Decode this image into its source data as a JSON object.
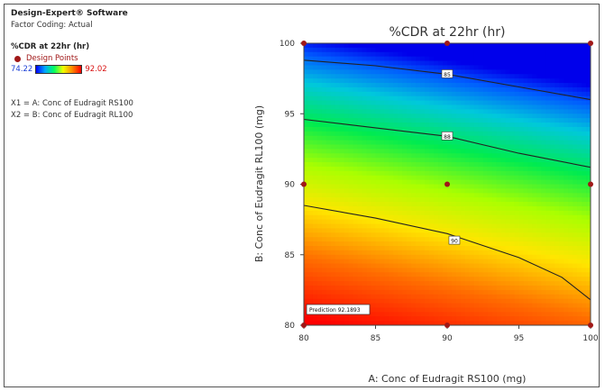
{
  "sidebar": {
    "title": "Design-Expert® Software",
    "coding": "Factor Coding: Actual",
    "response": "%CDR at 22hr (hr)",
    "design_points_label": "Design Points",
    "scale_min": "74.22",
    "scale_max": "92.02",
    "x1": "X1 = A: Conc of Eudragit RS100",
    "x2": "X2 = B: Conc of Eudragit RL100"
  },
  "colors": {
    "design_point": "#a01818",
    "contour_line": "#222222",
    "low": "#0000ff",
    "high": "#ff0000"
  },
  "chart_data": {
    "type": "contour",
    "title": "%CDR at 22hr (hr)",
    "xlabel": "A: Conc of Eudragit RS100 (mg)",
    "ylabel": "B: Conc of Eudragit RL100 (mg)",
    "xlim": [
      80,
      100
    ],
    "ylim": [
      80,
      100
    ],
    "xticks": [
      "80",
      "85",
      "90",
      "95",
      "100"
    ],
    "yticks": [
      "80",
      "85",
      "90",
      "95",
      "100"
    ],
    "response_range": [
      74.22,
      92.02
    ],
    "design_points": [
      {
        "x": 80,
        "y": 80
      },
      {
        "x": 90,
        "y": 80
      },
      {
        "x": 100,
        "y": 80
      },
      {
        "x": 80,
        "y": 90
      },
      {
        "x": 90,
        "y": 90
      },
      {
        "x": 100,
        "y": 90
      },
      {
        "x": 80,
        "y": 100
      },
      {
        "x": 90,
        "y": 100
      },
      {
        "x": 100,
        "y": 100
      }
    ],
    "contours": [
      {
        "label": "85",
        "points": [
          [
            80,
            98.8
          ],
          [
            85,
            98.4
          ],
          [
            90,
            97.8
          ],
          [
            95,
            96.9
          ],
          [
            100,
            96.0
          ]
        ]
      },
      {
        "label": "88",
        "points": [
          [
            80,
            94.6
          ],
          [
            85,
            94.0
          ],
          [
            90,
            93.4
          ],
          [
            95,
            92.2
          ],
          [
            100,
            91.2
          ]
        ]
      },
      {
        "label": "90",
        "points": [
          [
            80,
            88.5
          ],
          [
            85,
            87.6
          ],
          [
            90,
            86.5
          ],
          [
            95,
            84.8
          ],
          [
            98,
            83.4
          ],
          [
            100,
            81.8
          ]
        ]
      }
    ],
    "prediction_label": "Prediction 92.1893"
  }
}
